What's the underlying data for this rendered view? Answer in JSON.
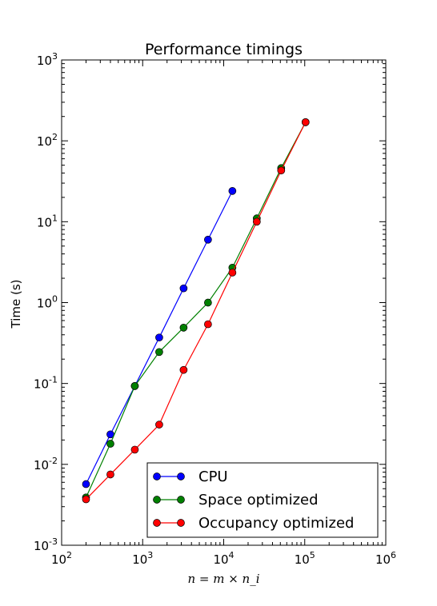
{
  "chart_data": {
    "type": "line",
    "title": "Performance timings",
    "xlabel": "n = m × n_i",
    "ylabel": "Time (s)",
    "xscale": "log",
    "yscale": "log",
    "xlim": [
      100,
      1000000
    ],
    "ylim": [
      0.001,
      1000
    ],
    "grid": false,
    "legend_position": "lower-right",
    "x_ticks": [
      {
        "base": "10",
        "exp": "2"
      },
      {
        "base": "10",
        "exp": "3"
      },
      {
        "base": "10",
        "exp": "4"
      },
      {
        "base": "10",
        "exp": "5"
      },
      {
        "base": "10",
        "exp": "6"
      }
    ],
    "y_ticks": [
      {
        "base": "10",
        "exp": "-3"
      },
      {
        "base": "10",
        "exp": "-2"
      },
      {
        "base": "10",
        "exp": "-1"
      },
      {
        "base": "10",
        "exp": "0"
      },
      {
        "base": "10",
        "exp": "1"
      },
      {
        "base": "10",
        "exp": "2"
      },
      {
        "base": "10",
        "exp": "3"
      }
    ],
    "series": [
      {
        "name": "CPU",
        "color": "#0000ff",
        "x": [
          200,
          400,
          800,
          1600,
          3200,
          6400,
          12800
        ],
        "y": [
          0.0057,
          0.0235,
          0.093,
          0.37,
          1.5,
          6.0,
          24.0
        ]
      },
      {
        "name": "Space optimized",
        "color": "#008000",
        "x": [
          200,
          400,
          800,
          1600,
          3200,
          6400,
          12800,
          25600,
          51200,
          102400
        ],
        "y": [
          0.0039,
          0.018,
          0.093,
          0.245,
          0.49,
          1.0,
          2.7,
          11.0,
          46.0,
          170.0
        ]
      },
      {
        "name": "Occupancy optimized",
        "color": "#ff0000",
        "x": [
          200,
          400,
          800,
          1600,
          3200,
          6400,
          12800,
          25600,
          51200,
          102400
        ],
        "y": [
          0.0037,
          0.0075,
          0.0152,
          0.031,
          0.147,
          0.54,
          2.35,
          10.0,
          43.0,
          170.0
        ]
      }
    ]
  }
}
